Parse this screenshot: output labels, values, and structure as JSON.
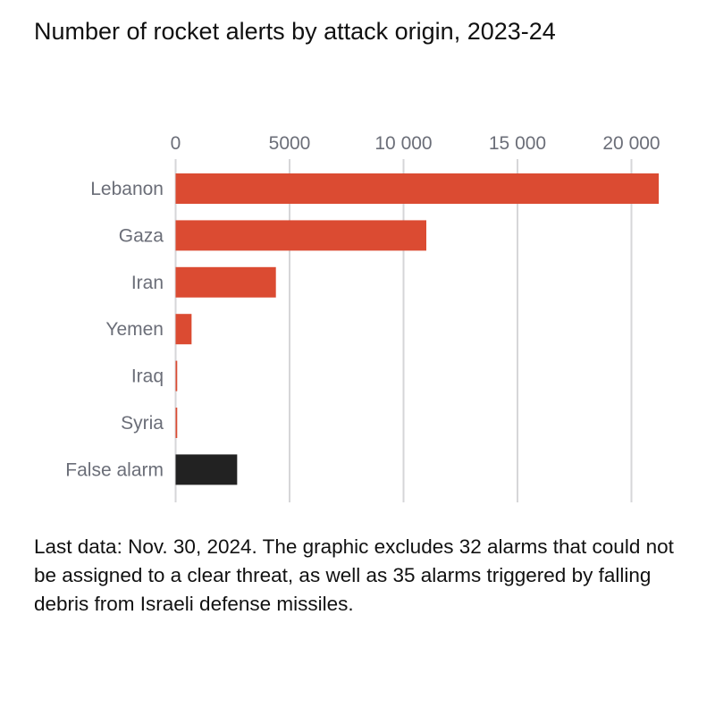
{
  "chart_data": {
    "type": "bar",
    "orientation": "horizontal",
    "title": "Number of rocket alerts by attack origin, 2023-24",
    "categories": [
      "Lebanon",
      "Gaza",
      "Iran",
      "Yemen",
      "Iraq",
      "Syria",
      "False alarm"
    ],
    "values": [
      21200,
      11000,
      4400,
      700,
      70,
      70,
      2700
    ],
    "xlim": [
      0,
      21500
    ],
    "xticks": [
      0,
      5000,
      10000,
      15000,
      20000
    ],
    "xtick_labels": [
      "0",
      "5000",
      "10 000",
      "15 000",
      "20 000"
    ],
    "axis_position": "top",
    "grid": true,
    "colors": {
      "threat": "#db4b32",
      "false_alarm": "#222222",
      "grid": "#d6d6d8"
    },
    "note": "Last data: Nov. 30, 2024. The graphic excludes 32 alarms that could not be assigned to a clear threat, as well as 35 alarms triggered by falling debris from Israeli defense missiles."
  }
}
